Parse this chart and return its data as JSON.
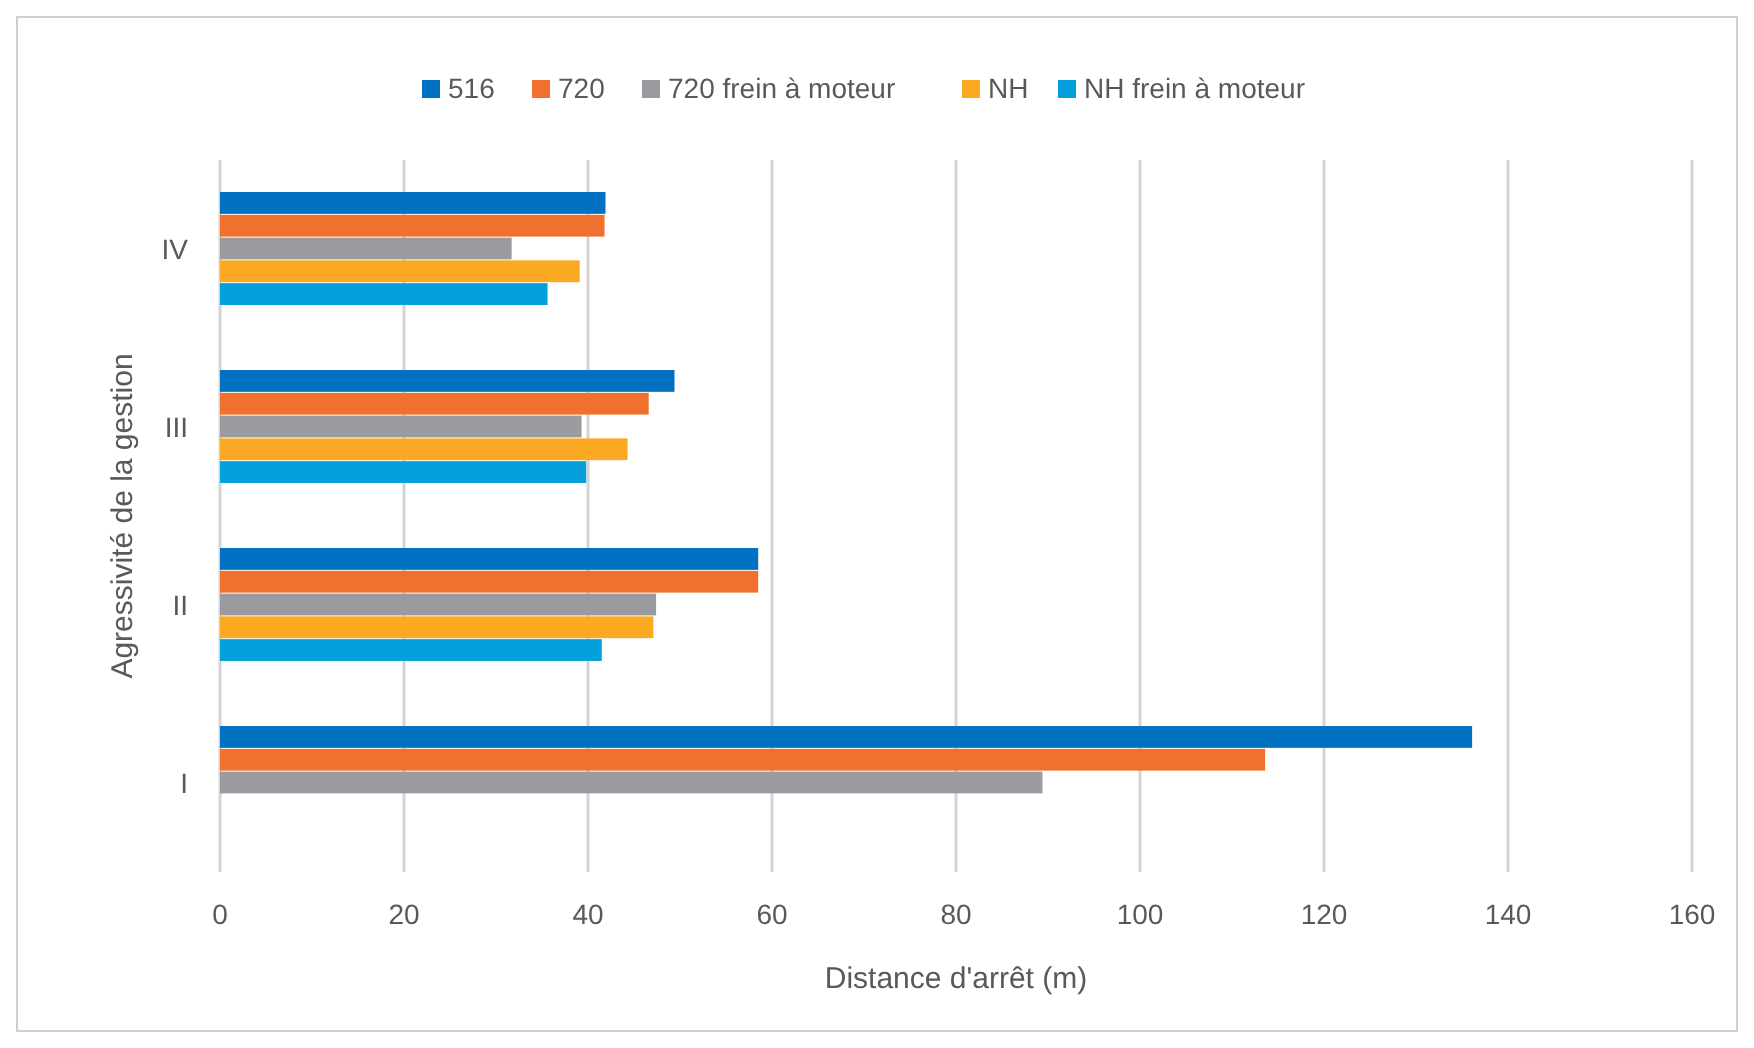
{
  "chart_data": {
    "type": "bar",
    "orientation": "horizontal",
    "xlabel": "Distance d'arrêt (m)",
    "ylabel": "Agressivité de la gestion",
    "categories": [
      "IV",
      "III",
      "II",
      "I"
    ],
    "series": [
      {
        "name": "516",
        "color": "#0070c0",
        "values": [
          41.9,
          49.4,
          58.5,
          136.1
        ]
      },
      {
        "name": "720",
        "color": "#f07030",
        "values": [
          41.8,
          46.6,
          58.5,
          113.6
        ]
      },
      {
        "name": "720 frein à moteur",
        "color": "#9a9b9e",
        "values": [
          31.7,
          39.3,
          47.4,
          89.4
        ]
      },
      {
        "name": "NH",
        "color": "#fba922",
        "values": [
          39.1,
          44.3,
          47.1,
          null
        ]
      },
      {
        "name": "NH frein à moteur",
        "color": "#05a0dc",
        "values": [
          35.6,
          39.8,
          41.5,
          null
        ]
      }
    ],
    "xlim": [
      0,
      160
    ],
    "xticks": [
      0,
      20,
      40,
      60,
      80,
      100,
      120,
      140,
      160
    ],
    "grid": "x",
    "legend": "top"
  }
}
